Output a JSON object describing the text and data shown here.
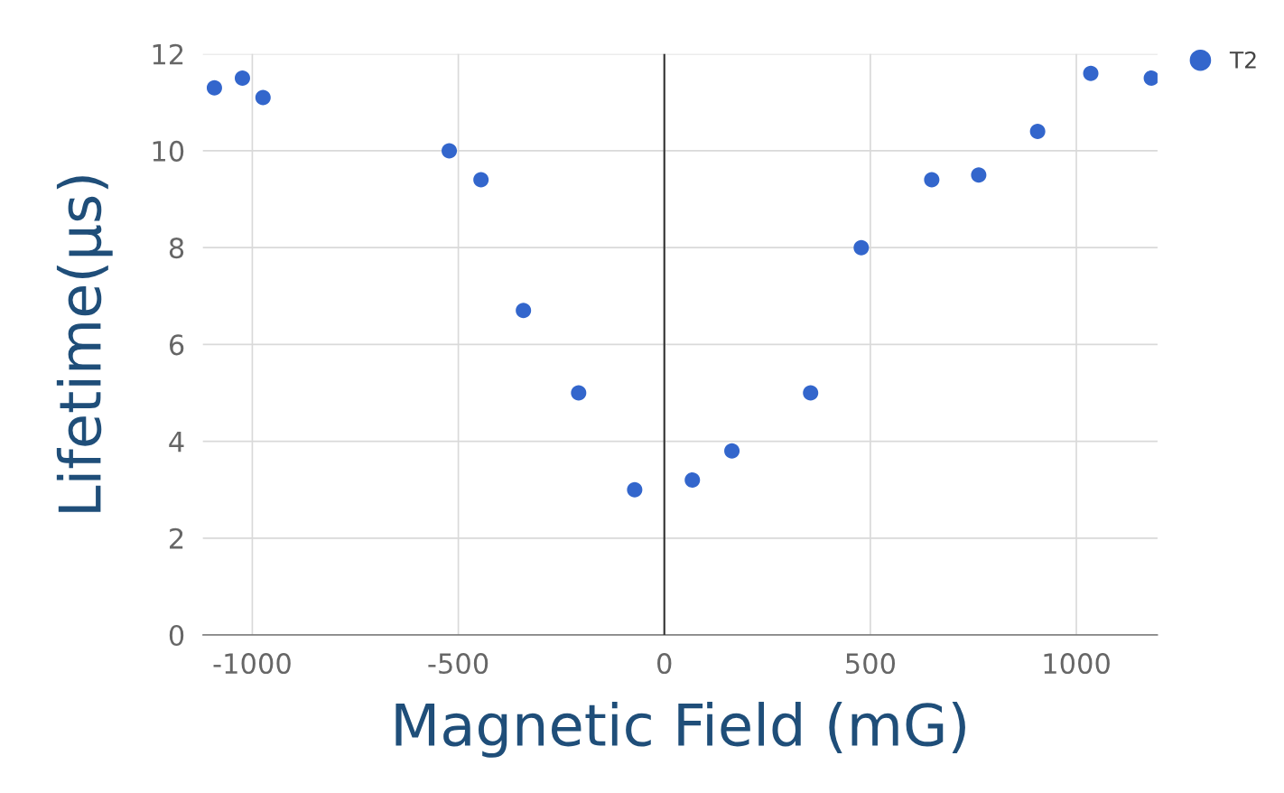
{
  "chart_data": {
    "type": "scatter",
    "xlabel": "Magnetic Field (mG)",
    "ylabel": "Lifetime(µs)",
    "x": [
      -1092,
      -1024,
      -974,
      -522,
      -445,
      -342,
      -208,
      -72,
      68,
      164,
      355,
      478,
      649,
      763,
      906,
      1035,
      1182
    ],
    "series": [
      {
        "name": "T2",
        "color": "#3366cc",
        "values": [
          11.3,
          11.5,
          11.1,
          10.0,
          9.4,
          6.7,
          5.0,
          3.0,
          3.2,
          3.8,
          5.0,
          8.0,
          9.4,
          9.5,
          10.4,
          11.6,
          11.5
        ]
      }
    ],
    "xlim": [
      -1120,
      1197
    ],
    "xticks": [
      -1000,
      -500,
      0,
      500,
      1000
    ],
    "ylim": [
      0,
      12
    ],
    "yticks": [
      0,
      2,
      4,
      6,
      8,
      10,
      12
    ],
    "ref_lines": [
      {
        "axis": "x",
        "value": 0,
        "color": "#333333"
      }
    ],
    "grid": true,
    "legend": "top right",
    "marker": "circle"
  }
}
